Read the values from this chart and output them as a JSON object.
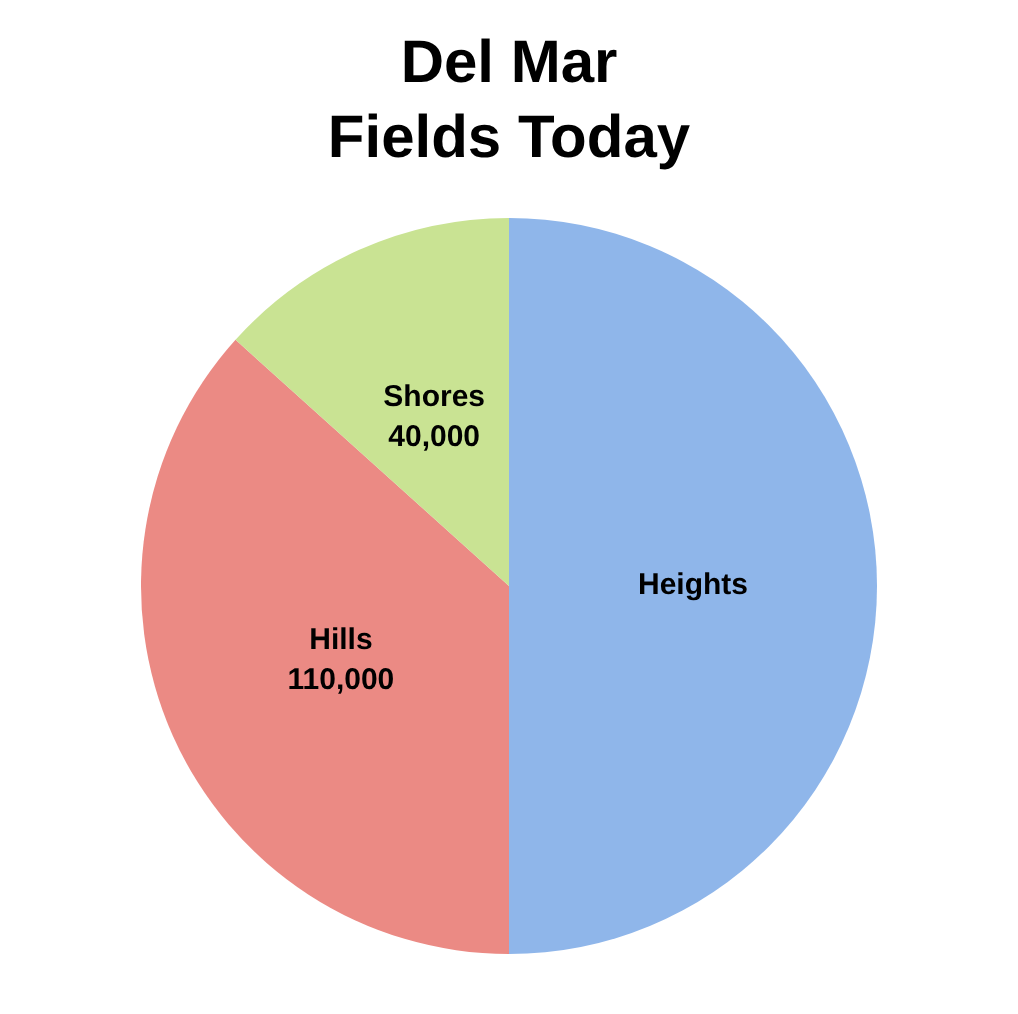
{
  "chart_data": {
    "type": "pie",
    "title": "Del Mar\nFields Today",
    "categories": [
      "Heights",
      "Hills",
      "Shores"
    ],
    "values": [
      150000,
      110000,
      40000
    ],
    "colors": [
      "#8fb6ea",
      "#eb8a84",
      "#c9e393"
    ],
    "value_labels": [
      null,
      "110,000",
      "40,000"
    ],
    "legend": false
  }
}
